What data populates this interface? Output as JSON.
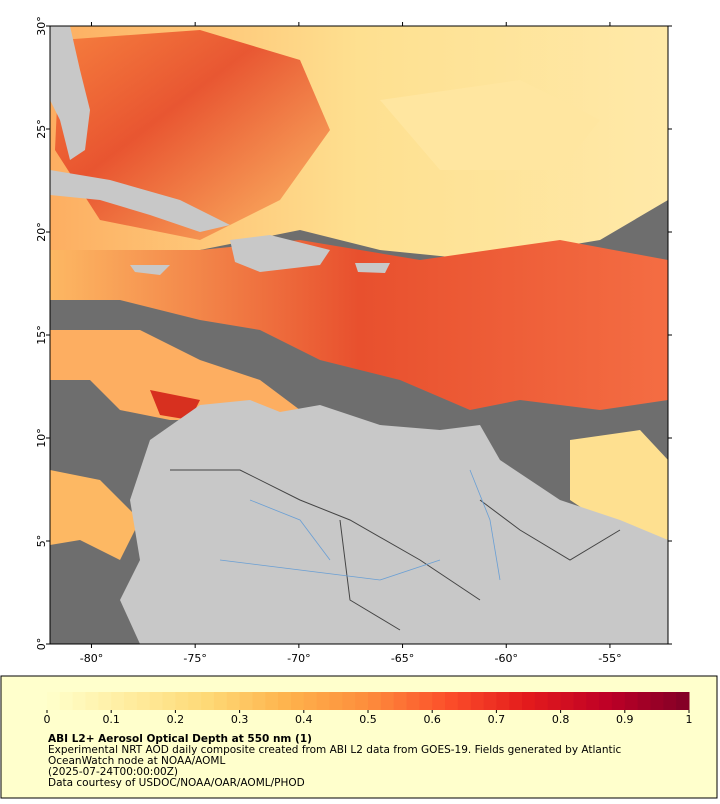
{
  "map": {
    "lonlim": [
      -82,
      -52.2
    ],
    "latlim": [
      0,
      30
    ],
    "lat_ticks": [
      {
        "value": 0,
        "label": "0°"
      },
      {
        "value": 5,
        "label": "5°"
      },
      {
        "value": 10,
        "label": "10°"
      },
      {
        "value": 15,
        "label": "15°"
      },
      {
        "value": 20,
        "label": "20°"
      },
      {
        "value": 25,
        "label": "25°"
      },
      {
        "value": 30,
        "label": "30°"
      }
    ],
    "lon_ticks": [
      {
        "value": -80,
        "label": "-80°"
      },
      {
        "value": -75,
        "label": "-75°"
      },
      {
        "value": -70,
        "label": "-70°"
      },
      {
        "value": -65,
        "label": "-65°"
      },
      {
        "value": -60,
        "label": "-60°"
      },
      {
        "value": -55,
        "label": "-55°"
      }
    ],
    "colorbar": {
      "range": [
        0,
        1
      ],
      "ticks": [
        0,
        0.1,
        0.2,
        0.3,
        0.4,
        0.5,
        0.6,
        0.7,
        0.8,
        0.9,
        1
      ],
      "title": "ABI L2+ Aerosol Optical Depth at 550 nm (1)"
    },
    "caption": [
      "Experimental NRT AOD daily composite created from ABI L2 data from GOES-19. Fields generated by Atlantic",
      "OceanWatch node at NOAA/AOML",
      "(2025-07-24T00:00:00Z)",
      "Data courtesy of USDOC/NOAA/OAR/AOML/PHOD"
    ]
  }
}
